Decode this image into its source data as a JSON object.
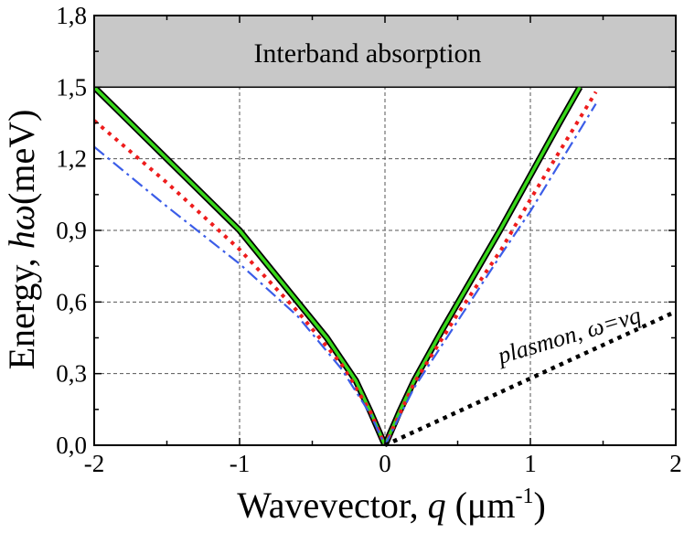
{
  "chart_data": {
    "type": "line",
    "xlabel_prefix": "Wavevector, ",
    "xlabel_var": "q",
    "xlabel_unit": "(μm",
    "xlabel_unit_exp": "-1",
    "xlabel_unit_close": ")",
    "ylabel_prefix": "Energy, ",
    "ylabel_var": "hω",
    "ylabel_unit": "(meV)",
    "xlim": [
      -2,
      2
    ],
    "ylim": [
      0,
      1.8
    ],
    "xticks": [
      "-2",
      "-1",
      "0",
      "1",
      "2"
    ],
    "yticks": [
      "0,0",
      "0,3",
      "0,6",
      "0,9",
      "1,2",
      "1,5",
      "1,8"
    ],
    "xtick_values": [
      -2,
      -1,
      0,
      1,
      2
    ],
    "ytick_values": [
      0,
      0.3,
      0.6,
      0.9,
      1.2,
      1.5,
      1.8
    ],
    "grid": true,
    "band": {
      "label": "Interband absorption",
      "y_from": 1.5,
      "y_to": 1.8,
      "color": "#c8c8c8"
    },
    "plasmon_label": "plasmon, ω=νq",
    "series": [
      {
        "name": "green",
        "style": "solid-outlined",
        "color": "#39d81a",
        "outline": "#000000",
        "x": [
          -2.0,
          -1.5,
          -1.0,
          -0.6,
          -0.4,
          -0.2,
          -0.1,
          0.0,
          0.1,
          0.2,
          0.4,
          0.6,
          0.8,
          1.0,
          1.2,
          1.34
        ],
        "y": [
          1.5,
          1.2,
          0.9,
          0.6,
          0.45,
          0.27,
          0.14,
          0.0,
          0.14,
          0.27,
          0.49,
          0.7,
          0.91,
          1.13,
          1.35,
          1.5
        ]
      },
      {
        "name": "red",
        "style": "dotted",
        "color": "#ee1c1c",
        "x": [
          -2.0,
          -1.5,
          -1.0,
          -0.6,
          -0.3,
          -0.1,
          0.0,
          0.2,
          0.5,
          0.8,
          1.0,
          1.2,
          1.45
        ],
        "y": [
          1.36,
          1.1,
          0.82,
          0.56,
          0.34,
          0.14,
          0.0,
          0.26,
          0.55,
          0.82,
          1.03,
          1.23,
          1.48
        ]
      },
      {
        "name": "blue",
        "style": "dashdot",
        "color": "#3b5de8",
        "x": [
          -2.0,
          -1.5,
          -1.0,
          -0.6,
          -0.3,
          -0.1,
          0.0,
          0.2,
          0.5,
          0.8,
          1.0,
          1.2,
          1.45
        ],
        "y": [
          1.25,
          1.0,
          0.76,
          0.54,
          0.32,
          0.13,
          0.0,
          0.24,
          0.52,
          0.8,
          0.98,
          1.18,
          1.43
        ]
      },
      {
        "name": "plasmon",
        "style": "dotted-bold",
        "color": "#000000",
        "x": [
          0.0,
          2.0
        ],
        "y": [
          0.0,
          0.56
        ]
      }
    ]
  }
}
